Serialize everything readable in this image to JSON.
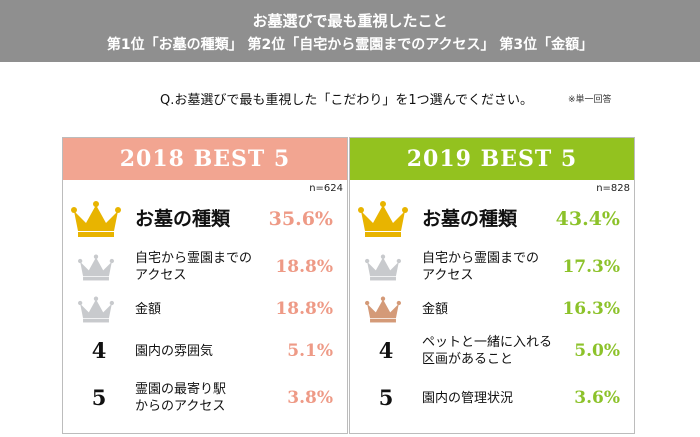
{
  "header": {
    "title": "お墓選びで最も重視したこと",
    "subtitle": "第1位「お墓の種類」 第2位「自宅から霊園までのアクセス」 第3位「金額」"
  },
  "question": "Q.お墓選びで最も重視した「こだわり」を1つ選んでください。",
  "note": "※単一回答",
  "colors": {
    "panel_2018": "#f2a591",
    "panel_2019": "#93c21f",
    "crown_gold": "#e8b400",
    "crown_silver": "#c8cacd",
    "crown_bronze": "#d49a78"
  },
  "chart_data": [
    {
      "type": "table",
      "title": "2018 BEST 5",
      "n_label": "n=624",
      "rows": [
        {
          "rank": 1,
          "rank_label": "",
          "icon": "gold-crown-icon",
          "label_lines": [
            "お墓の種類"
          ],
          "value": 35.6,
          "value_label": "35.6%"
        },
        {
          "rank": 2,
          "rank_label": "",
          "icon": "silver-crown-icon",
          "label_lines": [
            "自宅から霊園までの",
            "アクセス"
          ],
          "value": 18.8,
          "value_label": "18.8%"
        },
        {
          "rank": 2,
          "rank_label": "",
          "icon": "silver-crown-icon",
          "label_lines": [
            "金額"
          ],
          "value": 18.8,
          "value_label": "18.8%"
        },
        {
          "rank": 4,
          "rank_label": "4",
          "icon": "",
          "label_lines": [
            "園内の雰囲気"
          ],
          "value": 5.1,
          "value_label": "5.1%"
        },
        {
          "rank": 5,
          "rank_label": "5",
          "icon": "",
          "label_lines": [
            "霊園の最寄り駅",
            "からのアクセス"
          ],
          "value": 3.8,
          "value_label": "3.8%"
        }
      ]
    },
    {
      "type": "table",
      "title": "2019 BEST 5",
      "n_label": "n=828",
      "rows": [
        {
          "rank": 1,
          "rank_label": "",
          "icon": "gold-crown-icon",
          "label_lines": [
            "お墓の種類"
          ],
          "value": 43.4,
          "value_label": "43.4%"
        },
        {
          "rank": 2,
          "rank_label": "",
          "icon": "silver-crown-icon",
          "label_lines": [
            "自宅から霊園までの",
            "アクセス"
          ],
          "value": 17.3,
          "value_label": "17.3%"
        },
        {
          "rank": 3,
          "rank_label": "",
          "icon": "bronze-crown-icon",
          "label_lines": [
            "金額"
          ],
          "value": 16.3,
          "value_label": "16.3%"
        },
        {
          "rank": 4,
          "rank_label": "4",
          "icon": "",
          "label_lines": [
            "ペットと一緒に入れる",
            "区画があること"
          ],
          "value": 5.0,
          "value_label": "5.0%"
        },
        {
          "rank": 5,
          "rank_label": "5",
          "icon": "",
          "label_lines": [
            "園内の管理状況"
          ],
          "value": 3.6,
          "value_label": "3.6%"
        }
      ]
    }
  ]
}
